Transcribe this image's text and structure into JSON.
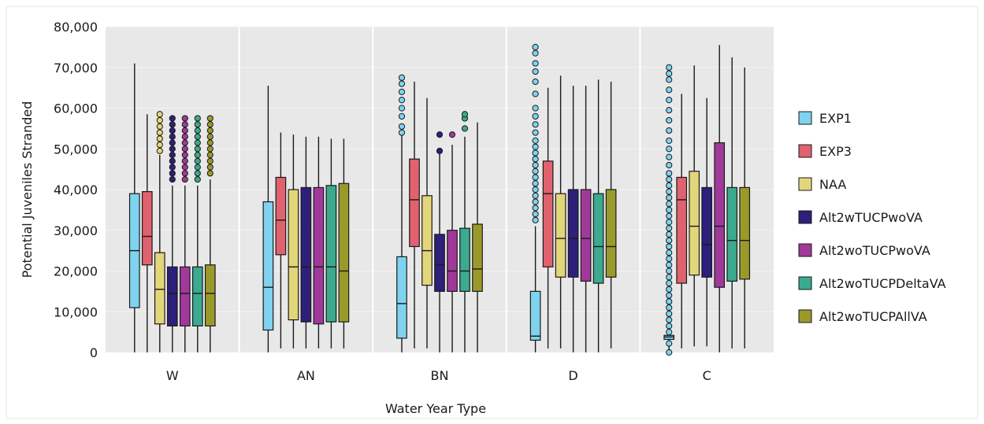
{
  "chart_data": {
    "type": "boxplot",
    "xlabel": "Water Year Type",
    "ylabel": "Potential Juveniles Stranded",
    "ylim": [
      0,
      80000
    ],
    "yticks": [
      0,
      10000,
      20000,
      30000,
      40000,
      50000,
      60000,
      70000,
      80000
    ],
    "ytick_labels": [
      "0",
      "10,000",
      "20,000",
      "30,000",
      "40,000",
      "50,000",
      "60,000",
      "70,000",
      "80,000"
    ],
    "categories": [
      "W",
      "AN",
      "BN",
      "D",
      "C"
    ],
    "grid": true,
    "legend_position": "right",
    "series": [
      {
        "name": "EXP1",
        "color": "#7FD3EF",
        "boxes": [
          {
            "min": 0,
            "q1": 11000,
            "median": 25000,
            "q3": 39000,
            "max": 71000,
            "outliers": []
          },
          {
            "min": 0,
            "q1": 5500,
            "median": 16000,
            "q3": 37000,
            "max": 65500,
            "outliers": []
          },
          {
            "min": 0,
            "q1": 3500,
            "median": 12000,
            "q3": 23500,
            "max": 54000,
            "outliers": [
              54000,
              55500,
              58000,
              60000,
              62000,
              64000,
              66000,
              67500
            ]
          },
          {
            "min": 0,
            "q1": 3000,
            "median": 4000,
            "q3": 15000,
            "max": 31000,
            "outliers": [
              32500,
              34000,
              35500,
              37000,
              38500,
              40000,
              41500,
              43000,
              44500,
              46000,
              47500,
              49000,
              50500,
              52000,
              54000,
              56000,
              58000,
              60000,
              63500,
              66500,
              69000,
              71000,
              73500,
              75000
            ]
          },
          {
            "min": 0,
            "q1": 3200,
            "median": 3800,
            "q3": 4200,
            "max": 4600,
            "outliers": [
              0,
              2200,
              5000,
              6500,
              8000,
              9500,
              11000,
              12500,
              14000,
              15500,
              17000,
              18500,
              20000,
              21500,
              23000,
              24500,
              26000,
              27500,
              29000,
              30500,
              32000,
              33500,
              35000,
              36500,
              38000,
              39500,
              41000,
              42500,
              44000,
              46000,
              48000,
              50000,
              52000,
              54500,
              57000,
              59500,
              62000,
              64500,
              67000,
              68500,
              70000
            ]
          }
        ]
      },
      {
        "name": "EXP3",
        "color": "#E0626E",
        "boxes": [
          {
            "min": 0,
            "q1": 21500,
            "median": 28500,
            "q3": 39500,
            "max": 58500,
            "outliers": []
          },
          {
            "min": 1000,
            "q1": 24000,
            "median": 32500,
            "q3": 43000,
            "max": 54000,
            "outliers": []
          },
          {
            "min": 1000,
            "q1": 26000,
            "median": 37500,
            "q3": 47500,
            "max": 66500,
            "outliers": []
          },
          {
            "min": 1000,
            "q1": 21000,
            "median": 39000,
            "q3": 47000,
            "max": 65000,
            "outliers": []
          },
          {
            "min": 1000,
            "q1": 17000,
            "median": 37500,
            "q3": 43000,
            "max": 63500,
            "outliers": []
          }
        ]
      },
      {
        "name": "NAA",
        "color": "#E3D57A",
        "boxes": [
          {
            "min": 0,
            "q1": 7000,
            "median": 15500,
            "q3": 24500,
            "max": 48500,
            "outliers": [
              49500,
              51000,
              52500,
              54000,
              55500,
              57000,
              58500
            ]
          },
          {
            "min": 1000,
            "q1": 8000,
            "median": 21000,
            "q3": 40000,
            "max": 53500,
            "outliers": []
          },
          {
            "min": 1000,
            "q1": 16500,
            "median": 25000,
            "q3": 38500,
            "max": 62500,
            "outliers": []
          },
          {
            "min": 1000,
            "q1": 18500,
            "median": 28000,
            "q3": 39000,
            "max": 68000,
            "outliers": []
          },
          {
            "min": 1500,
            "q1": 19000,
            "median": 31000,
            "q3": 44500,
            "max": 70500,
            "outliers": []
          }
        ]
      },
      {
        "name": "Alt2wTUCPwoVA",
        "color": "#2E1F7A",
        "boxes": [
          {
            "min": 0,
            "q1": 6500,
            "median": 14500,
            "q3": 21000,
            "max": 41000,
            "outliers": [
              42500,
              44000,
              45500,
              47000,
              48500,
              50000,
              51500,
              53000,
              54500,
              56000,
              57500
            ]
          },
          {
            "min": 1000,
            "q1": 7500,
            "median": 21000,
            "q3": 40500,
            "max": 53000,
            "outliers": []
          },
          {
            "min": 0,
            "q1": 15000,
            "median": 21500,
            "q3": 29000,
            "max": 49500,
            "outliers": [
              49500,
              53500
            ]
          },
          {
            "min": 0,
            "q1": 18500,
            "median": 28000,
            "q3": 40000,
            "max": 65500,
            "outliers": []
          },
          {
            "min": 1500,
            "q1": 18500,
            "median": 26500,
            "q3": 40500,
            "max": 62500,
            "outliers": []
          }
        ]
      },
      {
        "name": "Alt2woTUCPwoVA",
        "color": "#A0399A",
        "boxes": [
          {
            "min": 0,
            "q1": 6500,
            "median": 14500,
            "q3": 21000,
            "max": 41000,
            "outliers": [
              42500,
              44000,
              45500,
              47000,
              48500,
              50000,
              51500,
              53000,
              54500,
              56000,
              57500
            ]
          },
          {
            "min": 1000,
            "q1": 7000,
            "median": 21000,
            "q3": 40500,
            "max": 53000,
            "outliers": []
          },
          {
            "min": 0,
            "q1": 15000,
            "median": 20000,
            "q3": 30000,
            "max": 51000,
            "outliers": [
              53500
            ]
          },
          {
            "min": 0,
            "q1": 17500,
            "median": 28000,
            "q3": 40000,
            "max": 65500,
            "outliers": []
          },
          {
            "min": 0,
            "q1": 16000,
            "median": 31000,
            "q3": 51500,
            "max": 75500,
            "outliers": []
          }
        ]
      },
      {
        "name": "Alt2woTUCPDeltaVA",
        "color": "#3BAA8E",
        "boxes": [
          {
            "min": 0,
            "q1": 6500,
            "median": 14500,
            "q3": 21000,
            "max": 41000,
            "outliers": [
              42500,
              44000,
              45500,
              47000,
              48500,
              50000,
              51500,
              53000,
              54500,
              56000,
              57500
            ]
          },
          {
            "min": 1000,
            "q1": 7500,
            "median": 21000,
            "q3": 41000,
            "max": 52500,
            "outliers": []
          },
          {
            "min": 0,
            "q1": 15000,
            "median": 20000,
            "q3": 30500,
            "max": 53000,
            "outliers": [
              55000,
              57500,
              58500
            ]
          },
          {
            "min": 0,
            "q1": 17000,
            "median": 26000,
            "q3": 39000,
            "max": 67000,
            "outliers": []
          },
          {
            "min": 1000,
            "q1": 17500,
            "median": 27500,
            "q3": 40500,
            "max": 72500,
            "outliers": []
          }
        ]
      },
      {
        "name": "Alt2woTUCPAllVA",
        "color": "#9A9A2B",
        "boxes": [
          {
            "min": 0,
            "q1": 6500,
            "median": 14500,
            "q3": 21500,
            "max": 42500,
            "outliers": [
              44000,
              45500,
              47000,
              48500,
              50000,
              51500,
              53000,
              54500,
              56000,
              57500
            ]
          },
          {
            "min": 1000,
            "q1": 7500,
            "median": 20000,
            "q3": 41500,
            "max": 52500,
            "outliers": []
          },
          {
            "min": 0,
            "q1": 15000,
            "median": 20500,
            "q3": 31500,
            "max": 56500,
            "outliers": []
          },
          {
            "min": 1000,
            "q1": 18500,
            "median": 26000,
            "q3": 40000,
            "max": 66500,
            "outliers": []
          },
          {
            "min": 1000,
            "q1": 18000,
            "median": 27500,
            "q3": 40500,
            "max": 70000,
            "outliers": []
          }
        ]
      }
    ]
  }
}
